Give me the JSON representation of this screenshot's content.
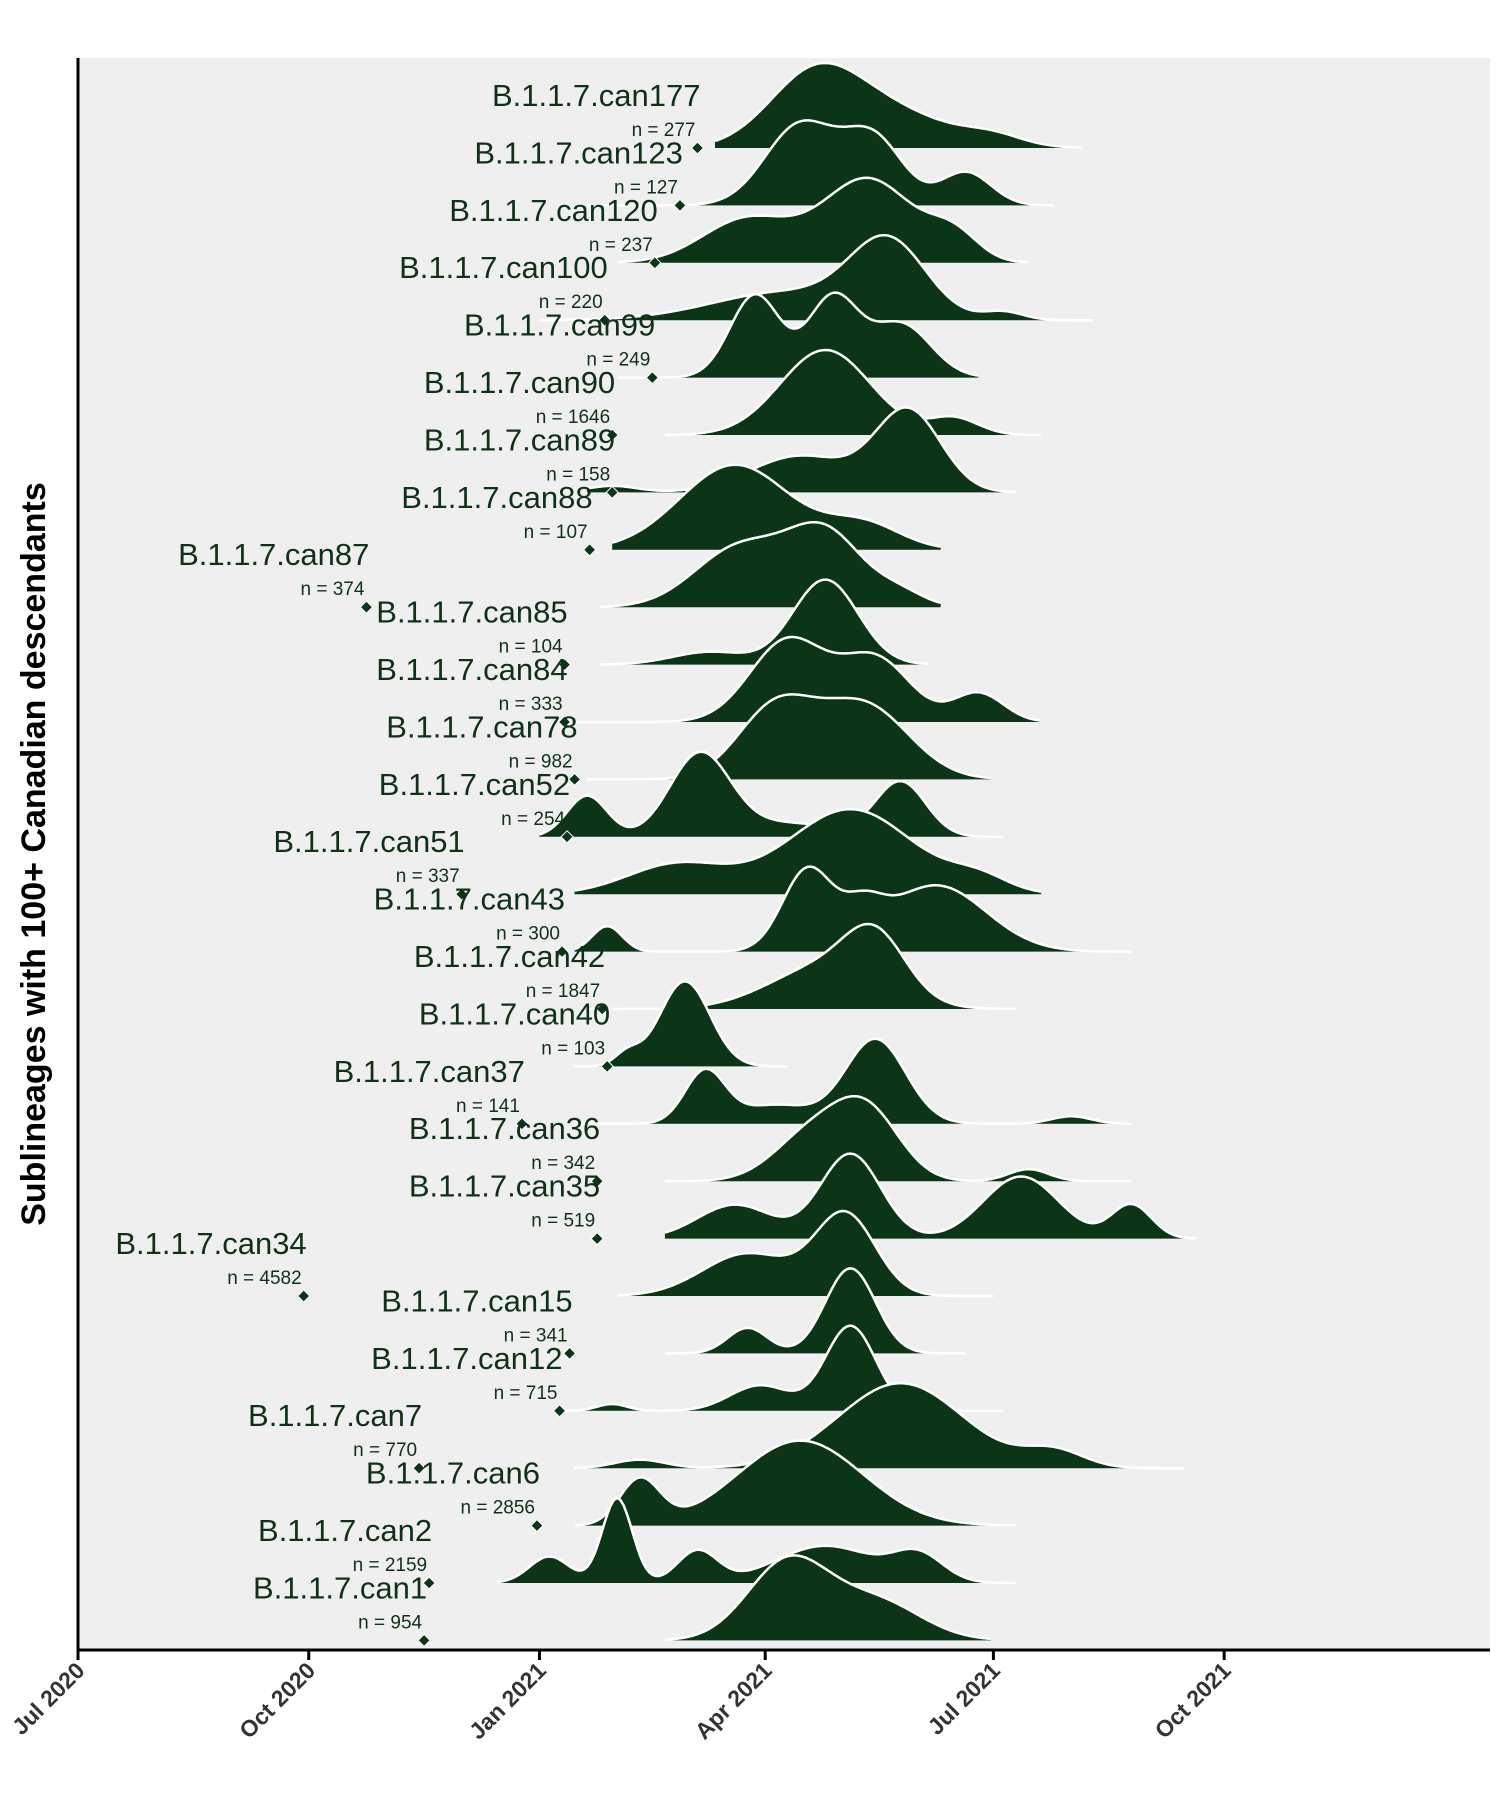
{
  "chart_data": {
    "type": "ridgeline",
    "title": "",
    "ylabel": "Sublineages with 100+ Canadian descendants",
    "xlabel": "",
    "xlim": [
      "2020-07-01",
      "2022-01-15"
    ],
    "xticks": [
      "2020-07-01",
      "2020-10-01",
      "2021-01-01",
      "2021-04-01",
      "2021-07-01",
      "2021-10-01"
    ],
    "xtick_labels": [
      "Jul 2020",
      "Oct 2020",
      "Jan 2021",
      "Apr 2021",
      "Jul 2021",
      "Oct 2021"
    ],
    "colors": {
      "fill": "#0b3516",
      "outline": "#ffffff",
      "panel": "#efefef",
      "axis": "#000000"
    },
    "series": [
      {
        "name": "B.1.1.7.can177",
        "n": 277,
        "origin": "2021-03-05",
        "range": [
          "2021-03-12",
          "2021-08-05"
        ],
        "components": [
          [
            "2021-04-20",
            18,
            1.0
          ],
          [
            "2021-05-18",
            25,
            0.6
          ],
          [
            "2021-07-01",
            12,
            0.15
          ]
        ]
      },
      {
        "name": "B.1.1.7.can123",
        "n": 127,
        "origin": "2021-02-26",
        "range": [
          "2021-01-20",
          "2021-07-25"
        ],
        "components": [
          [
            "2021-04-15",
            14,
            0.85
          ],
          [
            "2021-05-14",
            12,
            0.7
          ],
          [
            "2021-06-20",
            10,
            0.35
          ]
        ]
      },
      {
        "name": "B.1.1.7.can120",
        "n": 237,
        "origin": "2021-02-16",
        "range": [
          "2021-02-01",
          "2021-07-15"
        ],
        "components": [
          [
            "2021-03-25",
            18,
            0.5
          ],
          [
            "2021-05-12",
            18,
            0.95
          ],
          [
            "2021-06-15",
            10,
            0.3
          ]
        ]
      },
      {
        "name": "B.1.1.7.can100",
        "n": 220,
        "origin": "2021-01-27",
        "range": [
          "2021-01-01",
          "2021-08-10"
        ],
        "components": [
          [
            "2021-04-10",
            30,
            0.35
          ],
          [
            "2021-05-20",
            15,
            0.9
          ],
          [
            "2021-07-05",
            8,
            0.1
          ]
        ]
      },
      {
        "name": "B.1.1.7.can99",
        "n": 249,
        "origin": "2021-02-15",
        "range": [
          "2021-02-01",
          "2021-06-25"
        ],
        "components": [
          [
            "2021-03-28",
            10,
            0.85
          ],
          [
            "2021-04-28",
            10,
            0.82
          ],
          [
            "2021-05-25",
            12,
            0.55
          ]
        ]
      },
      {
        "name": "B.1.1.7.can90",
        "n": 1646,
        "origin": "2021-01-30",
        "range": [
          "2021-02-20",
          "2021-07-20"
        ],
        "components": [
          [
            "2021-04-25",
            18,
            1.0
          ],
          [
            "2021-06-15",
            10,
            0.2
          ]
        ]
      },
      {
        "name": "B.1.1.7.can89",
        "n": 158,
        "origin": "2021-01-30",
        "range": [
          "2021-01-20",
          "2021-07-10"
        ],
        "components": [
          [
            "2021-04-15",
            20,
            0.45
          ],
          [
            "2021-05-28",
            13,
            1.0
          ],
          [
            "2021-01-30",
            10,
            0.08
          ]
        ]
      },
      {
        "name": "B.1.1.7.can88",
        "n": 107,
        "origin": "2021-01-21",
        "range": [
          "2021-01-30",
          "2021-06-10"
        ],
        "components": [
          [
            "2021-03-20",
            22,
            1.0
          ],
          [
            "2021-05-10",
            15,
            0.3
          ]
        ]
      },
      {
        "name": "B.1.1.7.can87",
        "n": 374,
        "origin": "2020-10-24",
        "range": [
          "2021-01-25",
          "2021-06-10"
        ],
        "components": [
          [
            "2021-03-22",
            18,
            0.7
          ],
          [
            "2021-04-25",
            15,
            0.85
          ],
          [
            "2021-05-25",
            10,
            0.15
          ]
        ]
      },
      {
        "name": "B.1.1.7.can85",
        "n": 104,
        "origin": "2021-01-11",
        "range": [
          "2021-01-25",
          "2021-06-05"
        ],
        "components": [
          [
            "2021-04-25",
            13,
            1.0
          ],
          [
            "2021-03-10",
            15,
            0.15
          ]
        ]
      },
      {
        "name": "B.1.1.7.can84",
        "n": 333,
        "origin": "2021-01-11",
        "range": [
          "2021-01-15",
          "2021-07-20"
        ],
        "components": [
          [
            "2021-04-10",
            15,
            0.85
          ],
          [
            "2021-05-15",
            14,
            0.65
          ],
          [
            "2021-06-25",
            10,
            0.3
          ]
        ]
      },
      {
        "name": "B.1.1.7.can78",
        "n": 982,
        "origin": "2021-01-15",
        "range": [
          "2021-01-20",
          "2021-06-30"
        ],
        "components": [
          [
            "2021-04-05",
            15,
            0.75
          ],
          [
            "2021-05-10",
            18,
            0.8
          ]
        ]
      },
      {
        "name": "B.1.1.7.can52",
        "n": 254,
        "origin": "2021-01-12",
        "range": [
          "2021-01-01",
          "2021-07-05"
        ],
        "components": [
          [
            "2021-01-20",
            8,
            0.45
          ],
          [
            "2021-03-06",
            12,
            0.9
          ],
          [
            "2021-05-25",
            10,
            0.6
          ],
          [
            "2021-04-10",
            20,
            0.15
          ]
        ]
      },
      {
        "name": "B.1.1.7.can51",
        "n": 337,
        "origin": "2020-12-01",
        "range": [
          "2021-01-15",
          "2021-07-20"
        ],
        "components": [
          [
            "2021-02-25",
            20,
            0.3
          ],
          [
            "2021-05-05",
            25,
            0.85
          ],
          [
            "2021-06-25",
            12,
            0.15
          ]
        ]
      },
      {
        "name": "B.1.1.7.can43",
        "n": 300,
        "origin": "2021-01-10",
        "range": [
          "2021-01-15",
          "2021-08-25"
        ],
        "components": [
          [
            "2021-01-28",
            6,
            0.25
          ],
          [
            "2021-04-18",
            10,
            0.8
          ],
          [
            "2021-06-08",
            20,
            0.65
          ],
          [
            "2021-05-10",
            8,
            0.3
          ]
        ]
      },
      {
        "name": "B.1.1.7.can42",
        "n": 1847,
        "origin": "2021-01-26",
        "range": [
          "2021-01-20",
          "2021-07-10"
        ],
        "components": [
          [
            "2021-04-25",
            22,
            0.55
          ],
          [
            "2021-05-15",
            12,
            0.7
          ]
        ]
      },
      {
        "name": "B.1.1.7.can40",
        "n": 103,
        "origin": "2021-01-28",
        "range": [
          "2021-01-15",
          "2021-04-10"
        ],
        "components": [
          [
            "2021-02-28",
            10,
            1.0
          ],
          [
            "2021-02-05",
            5,
            0.15
          ]
        ]
      },
      {
        "name": "B.1.1.7.can37",
        "n": 141,
        "origin": "2020-12-25",
        "range": [
          "2021-01-15",
          "2021-08-25"
        ],
        "components": [
          [
            "2021-03-08",
            8,
            0.55
          ],
          [
            "2021-05-15",
            12,
            0.9
          ],
          [
            "2021-04-05",
            15,
            0.2
          ],
          [
            "2021-08-01",
            8,
            0.08
          ]
        ]
      },
      {
        "name": "B.1.1.7.can36",
        "n": 342,
        "origin": "2021-01-24",
        "range": [
          "2021-02-20",
          "2021-08-25"
        ],
        "components": [
          [
            "2021-04-20",
            15,
            0.6
          ],
          [
            "2021-05-12",
            13,
            0.8
          ],
          [
            "2021-07-15",
            8,
            0.15
          ]
        ]
      },
      {
        "name": "B.1.1.7.can35",
        "n": 519,
        "origin": "2021-01-24",
        "range": [
          "2021-02-20",
          "2021-09-20"
        ],
        "components": [
          [
            "2021-03-20",
            15,
            0.3
          ],
          [
            "2021-05-05",
            12,
            0.75
          ],
          [
            "2021-07-12",
            15,
            0.55
          ],
          [
            "2021-08-25",
            8,
            0.3
          ]
        ]
      },
      {
        "name": "B.1.1.7.can34",
        "n": 4582,
        "origin": "2020-09-29",
        "range": [
          "2021-02-01",
          "2021-07-01"
        ],
        "components": [
          [
            "2021-03-25",
            18,
            0.5
          ],
          [
            "2021-05-03",
            12,
            0.95
          ]
        ]
      },
      {
        "name": "B.1.1.7.can15",
        "n": 341,
        "origin": "2021-01-13",
        "range": [
          "2021-02-20",
          "2021-06-20"
        ],
        "components": [
          [
            "2021-03-25",
            8,
            0.3
          ],
          [
            "2021-05-05",
            10,
            1.0
          ]
        ]
      },
      {
        "name": "B.1.1.7.can12",
        "n": 715,
        "origin": "2021-01-09",
        "range": [
          "2021-01-10",
          "2021-07-05"
        ],
        "components": [
          [
            "2021-01-30",
            6,
            0.08
          ],
          [
            "2021-05-05",
            10,
            1.0
          ],
          [
            "2021-03-30",
            12,
            0.3
          ]
        ]
      },
      {
        "name": "B.1.1.7.can7",
        "n": 770,
        "origin": "2020-11-14",
        "range": [
          "2021-01-15",
          "2021-09-15"
        ],
        "components": [
          [
            "2021-05-25",
            25,
            1.0
          ],
          [
            "2021-07-25",
            12,
            0.2
          ],
          [
            "2021-02-10",
            10,
            0.1
          ]
        ]
      },
      {
        "name": "B.1.1.7.can6",
        "n": 2856,
        "origin": "2020-12-31",
        "range": [
          "2021-01-15",
          "2021-07-10"
        ],
        "components": [
          [
            "2021-02-10",
            8,
            0.45
          ],
          [
            "2021-04-15",
            25,
            0.85
          ]
        ]
      },
      {
        "name": "B.1.1.7.can2",
        "n": 2159,
        "origin": "2020-11-18",
        "range": [
          "2020-12-15",
          "2021-07-10"
        ],
        "components": [
          [
            "2021-02-01",
            6,
            0.8
          ],
          [
            "2021-01-05",
            8,
            0.25
          ],
          [
            "2021-03-05",
            8,
            0.3
          ],
          [
            "2021-04-25",
            20,
            0.35
          ],
          [
            "2021-06-01",
            10,
            0.25
          ]
        ]
      },
      {
        "name": "B.1.1.7.can1",
        "n": 954,
        "origin": "2020-11-16",
        "range": [
          "2021-02-20",
          "2021-06-30"
        ],
        "components": [
          [
            "2021-04-10",
            16,
            1.0
          ],
          [
            "2021-05-15",
            18,
            0.5
          ]
        ]
      }
    ]
  }
}
